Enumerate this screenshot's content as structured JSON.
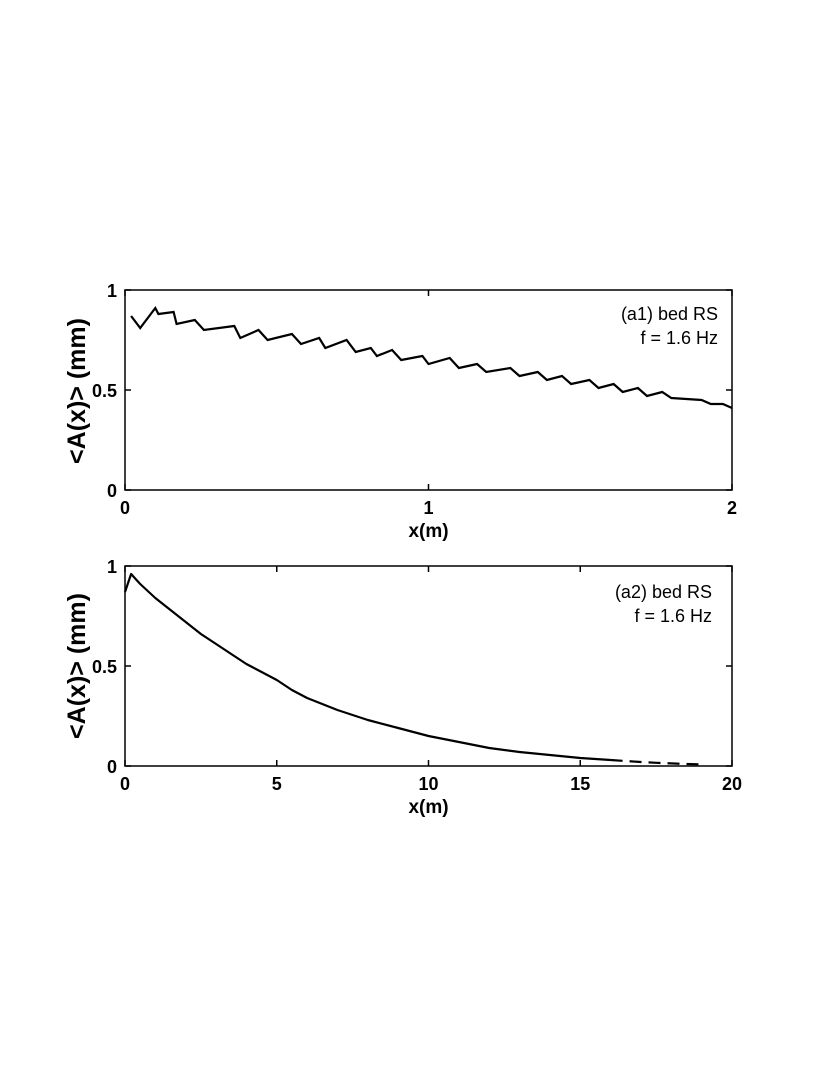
{
  "chart_data": [
    {
      "type": "line",
      "xlabel": "x(m)",
      "ylabel": "<A(x)> (mm)",
      "xlim": [
        0,
        2
      ],
      "ylim": [
        0,
        1
      ],
      "xticks": [
        "0",
        "1",
        "2"
      ],
      "yticks": [
        "0",
        "0.5",
        "1"
      ],
      "annotations": [
        "(a1) bed RS",
        "f = 1.6 Hz"
      ],
      "series": [
        {
          "x": [
            0.02,
            0.05,
            0.1,
            0.11,
            0.16,
            0.17,
            0.23,
            0.26,
            0.36,
            0.38,
            0.44,
            0.47,
            0.55,
            0.58,
            0.64,
            0.66,
            0.73,
            0.76,
            0.81,
            0.83,
            0.88,
            0.91,
            0.98,
            1.0,
            1.07,
            1.1,
            1.16,
            1.19,
            1.27,
            1.3,
            1.36,
            1.39,
            1.44,
            1.47,
            1.53,
            1.56,
            1.61,
            1.64,
            1.69,
            1.72,
            1.77,
            1.8,
            1.9,
            1.93,
            1.97,
            2.0
          ],
          "y": [
            0.87,
            0.81,
            0.91,
            0.88,
            0.89,
            0.83,
            0.85,
            0.8,
            0.82,
            0.76,
            0.8,
            0.75,
            0.78,
            0.73,
            0.76,
            0.71,
            0.75,
            0.69,
            0.71,
            0.67,
            0.7,
            0.65,
            0.67,
            0.63,
            0.66,
            0.61,
            0.63,
            0.59,
            0.61,
            0.57,
            0.59,
            0.55,
            0.57,
            0.53,
            0.55,
            0.51,
            0.53,
            0.49,
            0.51,
            0.47,
            0.49,
            0.46,
            0.45,
            0.43,
            0.43,
            0.41
          ]
        }
      ]
    },
    {
      "type": "line",
      "xlabel": "x(m)",
      "ylabel": "<A(x)> (mm)",
      "xlim": [
        0,
        20
      ],
      "ylim": [
        0,
        1
      ],
      "xticks": [
        "0",
        "5",
        "10",
        "15",
        "20"
      ],
      "yticks": [
        "0",
        "0.5",
        "1"
      ],
      "annotations": [
        "(a2) bed RS",
        "f = 1.6 Hz"
      ],
      "series": [
        {
          "x": [
            0.0,
            0.2,
            0.5,
            1,
            1.5,
            2,
            2.5,
            3,
            3.5,
            4,
            4.5,
            5,
            5.5,
            6,
            7,
            8,
            9,
            10,
            11,
            12,
            13,
            14,
            15,
            16
          ],
          "y": [
            0.87,
            0.96,
            0.91,
            0.84,
            0.78,
            0.72,
            0.66,
            0.61,
            0.56,
            0.51,
            0.47,
            0.43,
            0.38,
            0.34,
            0.28,
            0.23,
            0.19,
            0.15,
            0.12,
            0.09,
            0.07,
            0.055,
            0.04,
            0.03
          ]
        },
        {
          "x": [
            16,
            16.5,
            17,
            17.5,
            18,
            18.5,
            19
          ],
          "y": [
            0.03,
            0.025,
            0.02,
            0.016,
            0.013,
            0.01,
            0.008
          ],
          "style": "dashed"
        }
      ]
    }
  ]
}
